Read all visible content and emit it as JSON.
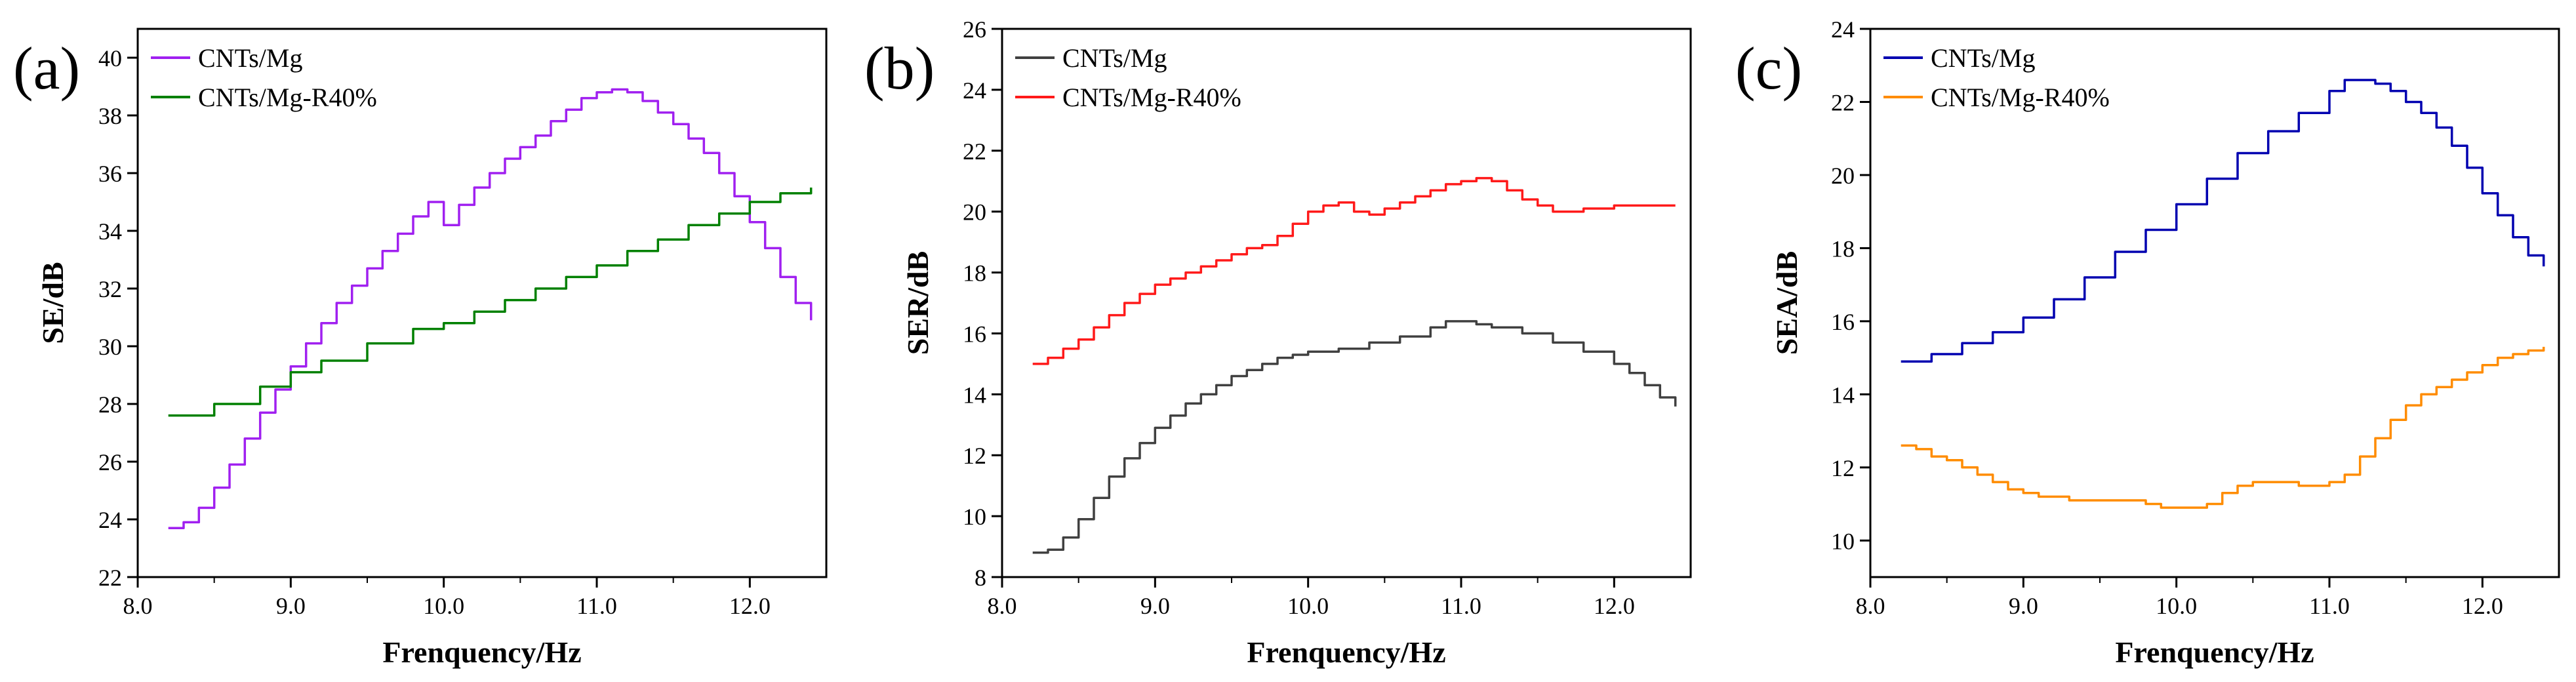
{
  "chart_data": [
    {
      "type": "line",
      "panel_label": "(a)",
      "xlabel": "Frenquency/Hz",
      "ylabel": "SE/dB",
      "xlim": [
        8.0,
        12.5
      ],
      "ylim": [
        22,
        41
      ],
      "xticks": [
        8.0,
        9.0,
        10.0,
        11.0,
        12.0
      ],
      "xtick_labels": [
        "8.0",
        "9.0",
        "10.0",
        "11.0",
        "12.0"
      ],
      "yticks": [
        22,
        24,
        26,
        28,
        30,
        32,
        34,
        36,
        38,
        40
      ],
      "ytick_labels": [
        "22",
        "24",
        "26",
        "28",
        "30",
        "32",
        "34",
        "36",
        "38",
        "40"
      ],
      "grid": false,
      "legend_position": "top-left",
      "series": [
        {
          "name": "CNTs/Mg",
          "color": "#a020f0",
          "x": [
            8.2,
            8.3,
            8.4,
            8.5,
            8.6,
            8.7,
            8.8,
            8.9,
            9.0,
            9.1,
            9.2,
            9.3,
            9.4,
            9.5,
            9.6,
            9.7,
            9.8,
            9.9,
            10.0,
            10.1,
            10.2,
            10.3,
            10.4,
            10.5,
            10.6,
            10.7,
            10.8,
            10.9,
            11.0,
            11.1,
            11.15,
            11.2,
            11.3,
            11.4,
            11.5,
            11.6,
            11.7,
            11.8,
            11.9,
            12.0,
            12.1,
            12.2,
            12.3,
            12.4
          ],
          "y": [
            23.7,
            23.9,
            24.4,
            25.1,
            25.9,
            26.8,
            27.7,
            28.5,
            29.3,
            30.1,
            30.8,
            31.5,
            32.1,
            32.7,
            33.3,
            33.9,
            34.5,
            35.0,
            34.2,
            34.9,
            35.5,
            36.0,
            36.5,
            36.9,
            37.3,
            37.8,
            38.2,
            38.6,
            38.8,
            38.9,
            38.9,
            38.8,
            38.5,
            38.1,
            37.7,
            37.2,
            36.7,
            36.0,
            35.2,
            34.3,
            33.4,
            32.4,
            31.5,
            30.9
          ]
        },
        {
          "name": "CNTs/Mg-R40%",
          "color": "#008000",
          "x": [
            8.2,
            8.5,
            8.8,
            9.0,
            9.2,
            9.5,
            9.8,
            10.0,
            10.2,
            10.4,
            10.6,
            10.8,
            11.0,
            11.2,
            11.4,
            11.6,
            11.8,
            12.0,
            12.2,
            12.4
          ],
          "y": [
            27.6,
            28.0,
            28.6,
            29.1,
            29.5,
            30.1,
            30.6,
            30.8,
            31.2,
            31.6,
            32.0,
            32.4,
            32.8,
            33.3,
            33.7,
            34.2,
            34.6,
            35.0,
            35.3,
            35.5
          ]
        }
      ]
    },
    {
      "type": "line",
      "panel_label": "(b)",
      "xlabel": "Frenquency/Hz",
      "ylabel": "SER/dB",
      "xlim": [
        8.0,
        12.5
      ],
      "ylim": [
        8,
        26
      ],
      "xticks": [
        8.0,
        9.0,
        10.0,
        11.0,
        12.0
      ],
      "xtick_labels": [
        "8.0",
        "9.0",
        "10.0",
        "11.0",
        "12.0"
      ],
      "yticks": [
        8,
        10,
        12,
        14,
        16,
        18,
        20,
        22,
        24,
        26
      ],
      "ytick_labels": [
        "8",
        "10",
        "12",
        "14",
        "16",
        "18",
        "20",
        "22",
        "24",
        "26"
      ],
      "grid": false,
      "legend_position": "top-left",
      "series": [
        {
          "name": "CNTs/Mg",
          "color": "#404040",
          "x": [
            8.2,
            8.3,
            8.4,
            8.5,
            8.6,
            8.7,
            8.8,
            8.9,
            9.0,
            9.1,
            9.2,
            9.3,
            9.4,
            9.5,
            9.6,
            9.7,
            9.8,
            9.9,
            10.0,
            10.2,
            10.4,
            10.6,
            10.8,
            10.9,
            11.0,
            11.1,
            11.2,
            11.4,
            11.6,
            11.8,
            12.0,
            12.1,
            12.2,
            12.3,
            12.4
          ],
          "y": [
            8.8,
            8.9,
            9.3,
            9.9,
            10.6,
            11.3,
            11.9,
            12.4,
            12.9,
            13.3,
            13.7,
            14.0,
            14.3,
            14.6,
            14.8,
            15.0,
            15.2,
            15.3,
            15.4,
            15.5,
            15.7,
            15.9,
            16.2,
            16.4,
            16.4,
            16.3,
            16.2,
            16.0,
            15.7,
            15.4,
            15.0,
            14.7,
            14.3,
            13.9,
            13.6
          ]
        },
        {
          "name": "CNTs/Mg-R40%",
          "color": "#ff1a1a",
          "x": [
            8.2,
            8.3,
            8.4,
            8.5,
            8.6,
            8.7,
            8.8,
            8.9,
            9.0,
            9.1,
            9.2,
            9.3,
            9.4,
            9.5,
            9.6,
            9.7,
            9.8,
            9.9,
            10.0,
            10.1,
            10.2,
            10.3,
            10.4,
            10.5,
            10.6,
            10.7,
            10.8,
            10.9,
            11.0,
            11.1,
            11.2,
            11.3,
            11.4,
            11.5,
            11.6,
            11.8,
            12.0,
            12.2,
            12.4
          ],
          "y": [
            15.0,
            15.2,
            15.5,
            15.8,
            16.2,
            16.6,
            17.0,
            17.3,
            17.6,
            17.8,
            18.0,
            18.2,
            18.4,
            18.6,
            18.8,
            18.9,
            19.2,
            19.6,
            20.0,
            20.2,
            20.3,
            20.0,
            19.9,
            20.1,
            20.3,
            20.5,
            20.7,
            20.9,
            21.0,
            21.1,
            21.0,
            20.7,
            20.4,
            20.2,
            20.0,
            20.1,
            20.2,
            20.2,
            20.2
          ]
        }
      ]
    },
    {
      "type": "line",
      "panel_label": "(c)",
      "xlabel": "Frenquency/Hz",
      "ylabel": "SEA/dB",
      "xlim": [
        8.0,
        12.5
      ],
      "ylim": [
        9,
        24
      ],
      "xticks": [
        8.0,
        9.0,
        10.0,
        11.0,
        12.0
      ],
      "xtick_labels": [
        "8.0",
        "9.0",
        "10.0",
        "11.0",
        "12.0"
      ],
      "yticks": [
        10,
        12,
        14,
        16,
        18,
        20,
        22,
        24
      ],
      "ytick_labels": [
        "10",
        "12",
        "14",
        "16",
        "18",
        "20",
        "22",
        "24"
      ],
      "grid": false,
      "legend_position": "top-left",
      "series": [
        {
          "name": "CNTs/Mg",
          "color": "#0000b0",
          "x": [
            8.2,
            8.4,
            8.6,
            8.8,
            9.0,
            9.2,
            9.4,
            9.6,
            9.8,
            10.0,
            10.2,
            10.4,
            10.6,
            10.8,
            11.0,
            11.1,
            11.2,
            11.3,
            11.4,
            11.5,
            11.6,
            11.7,
            11.8,
            11.9,
            12.0,
            12.1,
            12.2,
            12.3,
            12.4
          ],
          "y": [
            14.9,
            15.1,
            15.4,
            15.7,
            16.1,
            16.6,
            17.2,
            17.9,
            18.5,
            19.2,
            19.9,
            20.6,
            21.2,
            21.7,
            22.3,
            22.6,
            22.6,
            22.5,
            22.3,
            22.0,
            21.7,
            21.3,
            20.8,
            20.2,
            19.5,
            18.9,
            18.3,
            17.8,
            17.5
          ]
        },
        {
          "name": "CNTs/Mg-R40%",
          "color": "#ff8c00",
          "x": [
            8.2,
            8.3,
            8.4,
            8.5,
            8.6,
            8.7,
            8.8,
            8.9,
            9.0,
            9.1,
            9.2,
            9.3,
            9.4,
            9.5,
            9.6,
            9.7,
            9.8,
            9.9,
            10.0,
            10.1,
            10.2,
            10.3,
            10.4,
            10.5,
            10.6,
            10.7,
            10.8,
            10.9,
            11.0,
            11.1,
            11.2,
            11.3,
            11.4,
            11.5,
            11.6,
            11.7,
            11.8,
            11.9,
            12.0,
            12.1,
            12.2,
            12.3,
            12.4
          ],
          "y": [
            12.6,
            12.5,
            12.3,
            12.2,
            12.0,
            11.8,
            11.6,
            11.4,
            11.3,
            11.2,
            11.2,
            11.1,
            11.1,
            11.1,
            11.1,
            11.1,
            11.0,
            10.9,
            10.9,
            10.9,
            11.0,
            11.3,
            11.5,
            11.6,
            11.6,
            11.6,
            11.5,
            11.5,
            11.6,
            11.8,
            12.3,
            12.8,
            13.3,
            13.7,
            14.0,
            14.2,
            14.4,
            14.6,
            14.8,
            15.0,
            15.1,
            15.2,
            15.3
          ]
        }
      ]
    }
  ]
}
